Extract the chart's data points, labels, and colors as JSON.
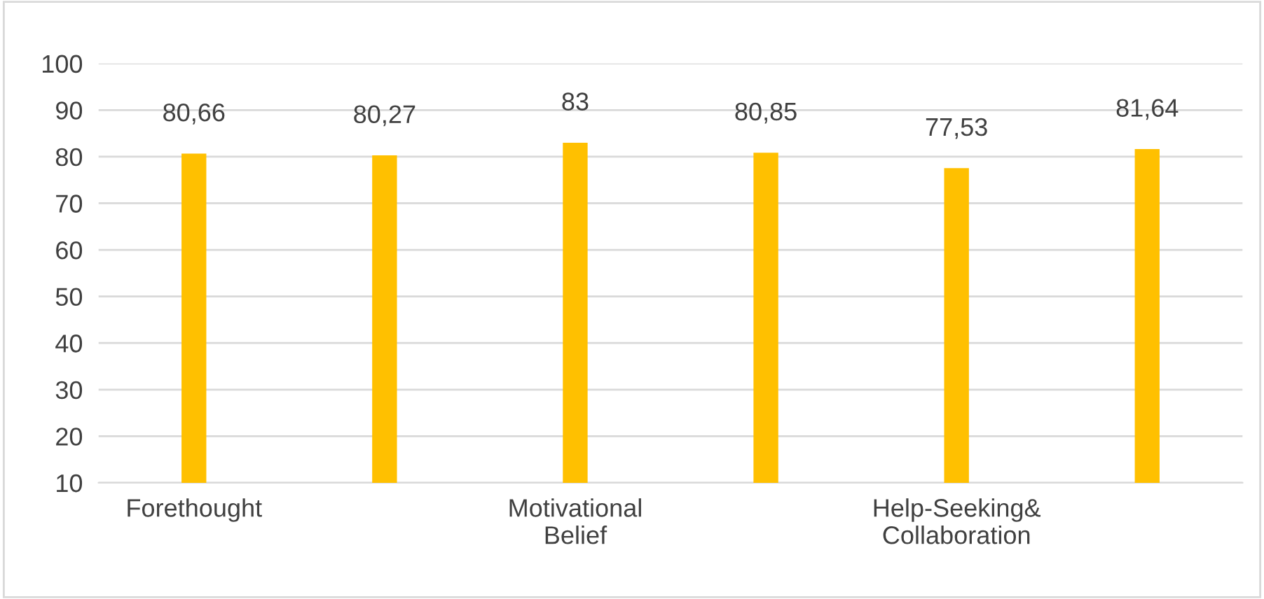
{
  "chart_data": {
    "type": "bar",
    "categories": [
      "Forethought",
      null,
      "Motivational Belief",
      null,
      "Help-Seeking& Collaboration",
      null
    ],
    "values": [
      80.66,
      80.27,
      83,
      80.85,
      77.53,
      81.64
    ],
    "value_labels": [
      "80,66",
      "80,27",
      "83",
      "80,85",
      "77,53",
      "81,64"
    ],
    "color": "#ffc000",
    "ylim": [
      10,
      100
    ],
    "yticks": [
      10,
      20,
      30,
      40,
      50,
      60,
      70,
      80,
      90,
      100
    ],
    "grid": "y",
    "legend": false
  }
}
